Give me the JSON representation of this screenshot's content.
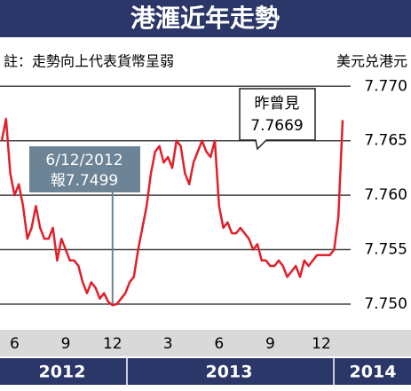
{
  "chart_data": {
    "type": "line",
    "title": "港滙近年走勢",
    "subtitle": "註：走勢向上代表貨幣呈弱",
    "y_label": "美元兑港元",
    "categories": [
      null,
      null,
      null,
      "6",
      null,
      null,
      null,
      null,
      null,
      null,
      null,
      null,
      null,
      null,
      null,
      "9",
      null,
      null,
      null,
      null,
      null,
      null,
      null,
      null,
      null,
      null,
      "12",
      null,
      null,
      null,
      null,
      null,
      null,
      null,
      null,
      null,
      null,
      null,
      null,
      "3",
      null,
      null,
      null,
      null,
      null,
      null,
      null,
      null,
      null,
      null,
      null,
      "6",
      null,
      null,
      null,
      null,
      null,
      null,
      null,
      null,
      null,
      null,
      null,
      "9",
      null,
      null,
      null,
      null,
      null,
      null,
      null,
      null,
      null,
      null,
      null,
      "12",
      null,
      null,
      null,
      null,
      null
    ],
    "values": [
      7.765,
      7.767,
      7.762,
      7.76,
      7.761,
      7.759,
      7.756,
      7.757,
      7.759,
      7.757,
      7.756,
      7.756,
      7.757,
      7.754,
      7.756,
      7.755,
      7.754,
      7.754,
      7.7535,
      7.752,
      7.751,
      7.752,
      7.7515,
      7.7505,
      7.751,
      7.7502,
      7.7499,
      7.75,
      7.7505,
      7.751,
      7.752,
      7.7525,
      7.755,
      7.757,
      7.759,
      7.762,
      7.764,
      7.7645,
      7.763,
      7.7635,
      7.7625,
      7.765,
      7.7645,
      7.762,
      7.761,
      7.763,
      7.764,
      7.765,
      7.764,
      7.7635,
      7.765,
      7.759,
      7.757,
      7.7575,
      7.7565,
      7.7565,
      7.757,
      7.7565,
      7.756,
      7.755,
      7.7555,
      7.754,
      7.754,
      7.7535,
      7.7535,
      7.754,
      7.7535,
      7.7525,
      7.753,
      7.7535,
      7.7525,
      7.754,
      7.7535,
      7.754,
      7.7545,
      7.7545,
      7.7545,
      7.7545,
      7.755,
      7.758,
      7.7669
    ],
    "color": "#e0202a",
    "ylim": [
      7.7478,
      7.771
    ],
    "yticks": [
      {
        "value": 7.77,
        "label": "7.770"
      },
      7.765,
      {
        "value": 7.76,
        "label": "7.760"
      },
      7.755,
      {
        "value": 7.75,
        "label": "7.750"
      }
    ],
    "grid": true,
    "years": [
      "2012",
      "2013",
      "2014"
    ],
    "annotations": [
      {
        "lines": [
          "6/12/2012",
          "報7.7499"
        ]
      },
      {
        "lines": [
          "昨曾見",
          "7.7669"
        ]
      }
    ]
  }
}
